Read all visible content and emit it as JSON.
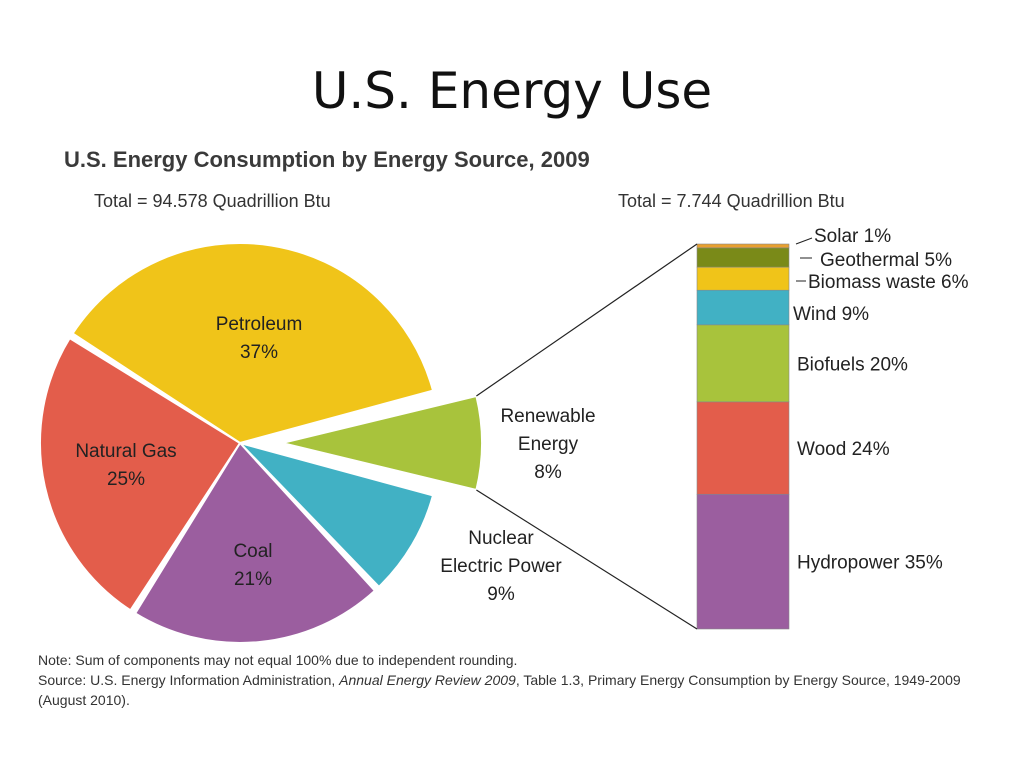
{
  "slide": {
    "title": "U.S. Energy Use"
  },
  "chart_data": {
    "type": "pie",
    "title": "U.S. Energy Consumption by Energy Source, 2009",
    "pie": {
      "total_label": "Total = 94.578 Quadrillion Btu",
      "slices": [
        {
          "name": "Petroleum",
          "value": 37,
          "label": "37%",
          "color": "#f0c419"
        },
        {
          "name": "Renewable Energy",
          "value": 8,
          "label": "8%",
          "color": "#a8c33c",
          "exploded": true
        },
        {
          "name": "Nuclear Electric Power",
          "value": 9,
          "label": "9%",
          "color": "#41b1c4"
        },
        {
          "name": "Coal",
          "value": 21,
          "label": "21%",
          "color": "#9b5e9f"
        },
        {
          "name": "Natural Gas",
          "value": 25,
          "label": "25%",
          "color": "#e35d4b"
        }
      ]
    },
    "breakdown": {
      "type": "stacked-bar",
      "total_label": "Total = 7.744 Quadrillion Btu",
      "segments": [
        {
          "name": "Hydropower",
          "value": 35,
          "label": "Hydropower 35%",
          "color": "#9b5e9f"
        },
        {
          "name": "Wood",
          "value": 24,
          "label": "Wood 24%",
          "color": "#e35d4b"
        },
        {
          "name": "Biofuels",
          "value": 20,
          "label": "Biofuels 20%",
          "color": "#a8c33c"
        },
        {
          "name": "Wind",
          "value": 9,
          "label": "Wind 9%",
          "color": "#41b1c4"
        },
        {
          "name": "Biomass waste",
          "value": 6,
          "label": "Biomass waste 6%",
          "color": "#f0c419"
        },
        {
          "name": "Geothermal",
          "value": 5,
          "label": "Geothermal 5%",
          "color": "#7a8a18"
        },
        {
          "name": "Solar",
          "value": 1,
          "label": "Solar 1%",
          "color": "#e8a030"
        }
      ]
    }
  },
  "note": {
    "line1": "Note: Sum of components may not equal 100% due to independent rounding.",
    "source_prefix": "Source: U.S. Energy Information Administration, ",
    "source_italic": "Annual Energy Review 2009",
    "source_suffix": ", Table 1.3, Primary Energy Consumption by Energy Source, 1949-2009 (August 2010)."
  }
}
